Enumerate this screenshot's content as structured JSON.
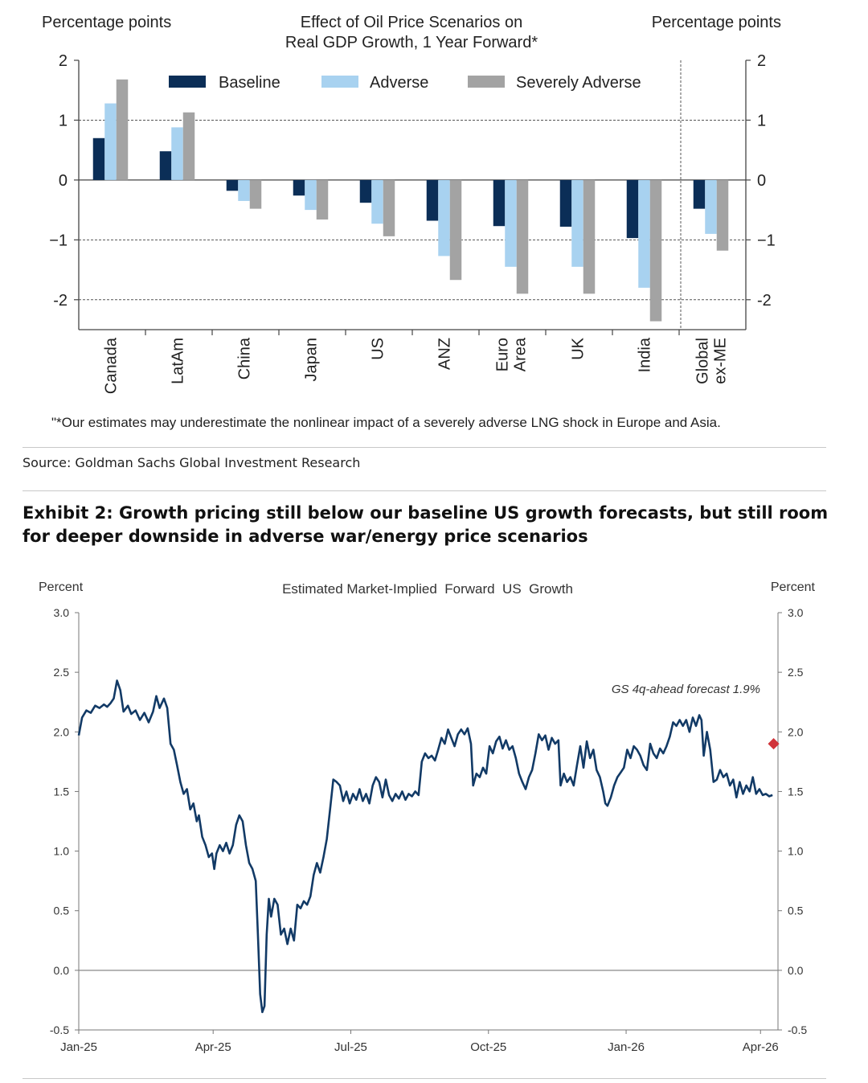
{
  "source": "Source: Goldman Sachs Global Investment Research",
  "exhibit_title": "Exhibit 2: Growth pricing still below our baseline US growth forecasts, but still room for deeper downside in adverse war/energy price scenarios",
  "colors": {
    "baseline": "#0b2e57",
    "adverse": "#a8d2f0",
    "severe": "#a3a3a3",
    "line": "#123a66",
    "marker": "#d0343a"
  },
  "chart_data": [
    {
      "type": "bar",
      "title_line1": "Effect of Oil Price Scenarios on",
      "title_line2": "Real GDP Growth, 1 Year Forward*",
      "ylabel_left": "Percentage points",
      "ylabel_right": "Percentage points",
      "ylim": [
        -2.5,
        2
      ],
      "yticks": [
        2,
        1,
        0,
        -1,
        -2
      ],
      "ytick_labels": [
        "2",
        "1",
        "0",
        "−1",
        "-2"
      ],
      "categories": [
        "Canada",
        "LatAm",
        "China",
        "Japan",
        "US",
        "ANZ",
        "Euro Area",
        "UK",
        "India",
        "Global ex-ME"
      ],
      "category_lines": [
        [
          "Canada"
        ],
        [
          "LatAm"
        ],
        [
          "China"
        ],
        [
          "Japan"
        ],
        [
          "US"
        ],
        [
          "ANZ"
        ],
        [
          "Euro",
          "Area"
        ],
        [
          "UK"
        ],
        [
          "India"
        ],
        [
          "Global",
          "ex-ME"
        ]
      ],
      "series": [
        {
          "name": "Baseline",
          "values": [
            0.7,
            0.48,
            -0.18,
            -0.26,
            -0.38,
            -0.68,
            -0.77,
            -0.78,
            -0.97,
            -0.48
          ]
        },
        {
          "name": "Adverse",
          "values": [
            1.28,
            0.88,
            -0.35,
            -0.5,
            -0.73,
            -1.27,
            -1.45,
            -1.45,
            -1.8,
            -0.9
          ]
        },
        {
          "name": "Severely Adverse",
          "values": [
            1.68,
            1.13,
            -0.48,
            -0.66,
            -0.94,
            -1.67,
            -1.9,
            -1.9,
            -2.36,
            -1.18
          ]
        }
      ],
      "legend_position": "top",
      "grid": true,
      "footnote": "\"*Our estimates may underestimate the nonlinear impact of a severely adverse LNG shock in Europe and Asia."
    },
    {
      "type": "line",
      "title": "Estimated Market-Implied  Forward  US  Growth",
      "ylabel_left": "Percent",
      "ylabel_right": "Percent",
      "ylim": [
        -0.5,
        3.0
      ],
      "yticks": [
        "3.0",
        "2.5",
        "2.0",
        "1.5",
        "1.0",
        "0.5",
        "0.0",
        "-0.5"
      ],
      "xlim_weeks": [
        0,
        64
      ],
      "xticks": [
        {
          "label": "Jan-25",
          "week": 0
        },
        {
          "label": "Apr-25",
          "week": 12.3
        },
        {
          "label": "Jul-25",
          "week": 24.9
        },
        {
          "label": "Oct-25",
          "week": 37.5
        },
        {
          "label": "Jan-26",
          "week": 50.1
        },
        {
          "label": "Apr-26",
          "week": 62.4
        }
      ],
      "series": [
        {
          "name": "Estimated Market-Implied Forward US Growth",
          "points": [
            [
              0,
              1.97
            ],
            [
              0.3,
              2.12
            ],
            [
              0.7,
              2.18
            ],
            [
              1.1,
              2.16
            ],
            [
              1.5,
              2.22
            ],
            [
              1.9,
              2.2
            ],
            [
              2.3,
              2.23
            ],
            [
              2.6,
              2.21
            ],
            [
              2.9,
              2.24
            ],
            [
              3.2,
              2.28
            ],
            [
              3.5,
              2.43
            ],
            [
              3.8,
              2.35
            ],
            [
              4.1,
              2.17
            ],
            [
              4.5,
              2.22
            ],
            [
              4.8,
              2.15
            ],
            [
              5.2,
              2.18
            ],
            [
              5.6,
              2.1
            ],
            [
              6.0,
              2.16
            ],
            [
              6.4,
              2.08
            ],
            [
              6.8,
              2.17
            ],
            [
              7.1,
              2.3
            ],
            [
              7.4,
              2.2
            ],
            [
              7.8,
              2.28
            ],
            [
              8.1,
              2.2
            ],
            [
              8.4,
              1.9
            ],
            [
              8.7,
              1.85
            ],
            [
              9.0,
              1.72
            ],
            [
              9.3,
              1.58
            ],
            [
              9.6,
              1.48
            ],
            [
              9.9,
              1.52
            ],
            [
              10.2,
              1.35
            ],
            [
              10.5,
              1.4
            ],
            [
              10.8,
              1.25
            ],
            [
              11.0,
              1.3
            ],
            [
              11.3,
              1.12
            ],
            [
              11.6,
              1.05
            ],
            [
              11.9,
              0.95
            ],
            [
              12.2,
              0.98
            ],
            [
              12.4,
              0.85
            ],
            [
              12.6,
              0.98
            ],
            [
              12.9,
              1.05
            ],
            [
              13.2,
              1.0
            ],
            [
              13.5,
              1.07
            ],
            [
              13.8,
              0.98
            ],
            [
              14.1,
              1.05
            ],
            [
              14.4,
              1.22
            ],
            [
              14.7,
              1.3
            ],
            [
              15.0,
              1.25
            ],
            [
              15.3,
              1.05
            ],
            [
              15.6,
              0.9
            ],
            [
              15.9,
              0.85
            ],
            [
              16.2,
              0.75
            ],
            [
              16.4,
              0.3
            ],
            [
              16.6,
              -0.2
            ],
            [
              16.8,
              -0.35
            ],
            [
              17.0,
              -0.3
            ],
            [
              17.2,
              0.3
            ],
            [
              17.4,
              0.6
            ],
            [
              17.6,
              0.45
            ],
            [
              17.9,
              0.6
            ],
            [
              18.2,
              0.55
            ],
            [
              18.5,
              0.3
            ],
            [
              18.8,
              0.35
            ],
            [
              19.1,
              0.22
            ],
            [
              19.4,
              0.35
            ],
            [
              19.7,
              0.25
            ],
            [
              20.0,
              0.55
            ],
            [
              20.3,
              0.52
            ],
            [
              20.6,
              0.58
            ],
            [
              20.9,
              0.55
            ],
            [
              21.2,
              0.62
            ],
            [
              21.5,
              0.8
            ],
            [
              21.8,
              0.9
            ],
            [
              22.1,
              0.82
            ],
            [
              22.4,
              0.95
            ],
            [
              22.7,
              1.1
            ],
            [
              23.0,
              1.35
            ],
            [
              23.3,
              1.6
            ],
            [
              23.6,
              1.58
            ],
            [
              23.9,
              1.55
            ],
            [
              24.2,
              1.42
            ],
            [
              24.5,
              1.5
            ],
            [
              24.8,
              1.4
            ],
            [
              25.1,
              1.48
            ],
            [
              25.4,
              1.43
            ],
            [
              25.7,
              1.52
            ],
            [
              26.0,
              1.42
            ],
            [
              26.3,
              1.48
            ],
            [
              26.6,
              1.4
            ],
            [
              26.9,
              1.55
            ],
            [
              27.2,
              1.62
            ],
            [
              27.5,
              1.58
            ],
            [
              27.8,
              1.45
            ],
            [
              28.1,
              1.6
            ],
            [
              28.4,
              1.47
            ],
            [
              28.7,
              1.42
            ],
            [
              29.0,
              1.48
            ],
            [
              29.3,
              1.44
            ],
            [
              29.6,
              1.5
            ],
            [
              29.9,
              1.43
            ],
            [
              30.2,
              1.48
            ],
            [
              30.5,
              1.46
            ],
            [
              30.8,
              1.5
            ],
            [
              31.1,
              1.47
            ],
            [
              31.4,
              1.75
            ],
            [
              31.7,
              1.82
            ],
            [
              32.0,
              1.78
            ],
            [
              32.3,
              1.8
            ],
            [
              32.6,
              1.76
            ],
            [
              32.9,
              1.85
            ],
            [
              33.2,
              1.95
            ],
            [
              33.5,
              1.9
            ],
            [
              33.8,
              2.02
            ],
            [
              34.1,
              1.95
            ],
            [
              34.4,
              1.88
            ],
            [
              34.7,
              1.98
            ],
            [
              35.0,
              2.02
            ],
            [
              35.3,
              1.98
            ],
            [
              35.6,
              2.03
            ],
            [
              35.9,
              1.9
            ],
            [
              36.1,
              1.55
            ],
            [
              36.4,
              1.65
            ],
            [
              36.7,
              1.62
            ],
            [
              37.0,
              1.7
            ],
            [
              37.3,
              1.65
            ],
            [
              37.6,
              1.88
            ],
            [
              37.9,
              1.82
            ],
            [
              38.2,
              1.92
            ],
            [
              38.5,
              1.96
            ],
            [
              38.8,
              1.86
            ],
            [
              39.1,
              1.93
            ],
            [
              39.4,
              1.85
            ],
            [
              39.7,
              1.88
            ],
            [
              40.0,
              1.78
            ],
            [
              40.3,
              1.65
            ],
            [
              40.6,
              1.58
            ],
            [
              40.9,
              1.52
            ],
            [
              41.2,
              1.62
            ],
            [
              41.5,
              1.68
            ],
            [
              41.8,
              1.82
            ],
            [
              42.1,
              1.98
            ],
            [
              42.4,
              1.93
            ],
            [
              42.7,
              1.97
            ],
            [
              43.0,
              1.85
            ],
            [
              43.3,
              1.95
            ],
            [
              43.6,
              1.9
            ],
            [
              43.9,
              1.93
            ],
            [
              44.1,
              1.55
            ],
            [
              44.4,
              1.65
            ],
            [
              44.7,
              1.58
            ],
            [
              45.0,
              1.62
            ],
            [
              45.3,
              1.55
            ],
            [
              45.6,
              1.72
            ],
            [
              45.9,
              1.88
            ],
            [
              46.2,
              1.7
            ],
            [
              46.5,
              1.92
            ],
            [
              46.8,
              1.78
            ],
            [
              47.1,
              1.85
            ],
            [
              47.4,
              1.68
            ],
            [
              47.7,
              1.62
            ],
            [
              48.0,
              1.5
            ],
            [
              48.2,
              1.4
            ],
            [
              48.4,
              1.38
            ],
            [
              48.7,
              1.45
            ],
            [
              49.0,
              1.55
            ],
            [
              49.3,
              1.62
            ],
            [
              49.6,
              1.66
            ],
            [
              49.9,
              1.7
            ],
            [
              50.2,
              1.85
            ],
            [
              50.5,
              1.78
            ],
            [
              50.8,
              1.88
            ],
            [
              51.1,
              1.85
            ],
            [
              51.4,
              1.8
            ],
            [
              51.7,
              1.72
            ],
            [
              52.0,
              1.68
            ],
            [
              52.3,
              1.9
            ],
            [
              52.6,
              1.82
            ],
            [
              52.9,
              1.78
            ],
            [
              53.2,
              1.86
            ],
            [
              53.5,
              1.82
            ],
            [
              53.8,
              1.88
            ],
            [
              54.1,
              1.96
            ],
            [
              54.4,
              2.08
            ],
            [
              54.7,
              2.05
            ],
            [
              55.0,
              2.1
            ],
            [
              55.3,
              2.05
            ],
            [
              55.6,
              2.1
            ],
            [
              55.9,
              2.0
            ],
            [
              56.2,
              2.12
            ],
            [
              56.5,
              2.05
            ],
            [
              56.8,
              2.14
            ],
            [
              57.0,
              2.1
            ],
            [
              57.2,
              1.8
            ],
            [
              57.5,
              2.0
            ],
            [
              57.8,
              1.85
            ],
            [
              58.1,
              1.58
            ],
            [
              58.4,
              1.6
            ],
            [
              58.7,
              1.68
            ],
            [
              59.0,
              1.62
            ],
            [
              59.3,
              1.65
            ],
            [
              59.6,
              1.55
            ],
            [
              59.9,
              1.6
            ],
            [
              60.2,
              1.45
            ],
            [
              60.5,
              1.58
            ],
            [
              60.8,
              1.48
            ],
            [
              61.1,
              1.55
            ],
            [
              61.4,
              1.5
            ],
            [
              61.7,
              1.62
            ],
            [
              62.0,
              1.48
            ],
            [
              62.3,
              1.52
            ],
            [
              62.6,
              1.47
            ],
            [
              62.9,
              1.48
            ],
            [
              63.2,
              1.46
            ],
            [
              63.5,
              1.47
            ]
          ]
        }
      ],
      "marker": {
        "label": "GS 4q-ahead forecast 1.9%",
        "week": 63.6,
        "value": 1.9
      },
      "grid": false
    }
  ]
}
